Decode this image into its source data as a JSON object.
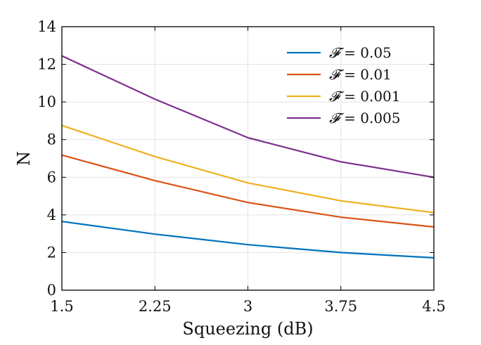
{
  "chart_data": {
    "type": "line",
    "title": "",
    "xlabel": "Squeezing (dB)",
    "ylabel": "N",
    "xlim": [
      1.5,
      4.5
    ],
    "ylim": [
      0,
      14
    ],
    "xticks": [
      1.5,
      2.25,
      3,
      3.75,
      4.5
    ],
    "xtick_labels": [
      "1.5",
      "2.25",
      "3",
      "3.75",
      "4.5"
    ],
    "yticks": [
      0,
      2,
      4,
      6,
      8,
      10,
      12,
      14
    ],
    "ytick_labels": [
      "0",
      "2",
      "4",
      "6",
      "8",
      "10",
      "12",
      "14"
    ],
    "grid": true,
    "legend_position": "top-right",
    "x": [
      1.5,
      2.25,
      3,
      3.75,
      4.5
    ],
    "series": [
      {
        "name": "𝓕 = 0.05",
        "symbol": "𝓕",
        "value_text": "= 0.05",
        "color": "#0072BD",
        "values": [
          3.65,
          2.98,
          2.42,
          2.0,
          1.72
        ]
      },
      {
        "name": "𝓕 = 0.01",
        "symbol": "𝓕",
        "value_text": "= 0.01",
        "color": "#D95319",
        "values": [
          7.18,
          5.82,
          4.66,
          3.88,
          3.36
        ]
      },
      {
        "name": "𝓕 = 0.001",
        "symbol": "𝓕",
        "value_text": "= 0.001",
        "color": "#EDB120",
        "values": [
          8.75,
          7.1,
          5.7,
          4.75,
          4.12
        ]
      },
      {
        "name": "𝓕 = 0.005",
        "symbol": "𝓕",
        "value_text": "= 0.005",
        "color": "#7E2F8E",
        "values": [
          12.45,
          10.15,
          8.1,
          6.82,
          6.0
        ]
      }
    ]
  }
}
